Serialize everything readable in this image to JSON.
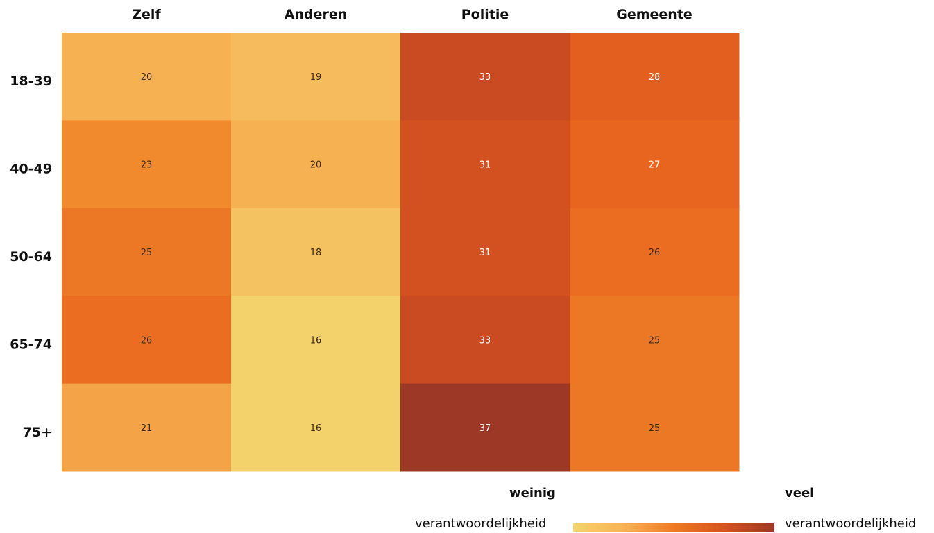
{
  "chart_data": {
    "type": "heatmap",
    "columns": [
      "Zelf",
      "Anderen",
      "Politie",
      "Gemeente"
    ],
    "rows": [
      "18-39",
      "40-49",
      "50-64",
      "65-74",
      "75+"
    ],
    "values": [
      [
        20,
        19,
        33,
        28
      ],
      [
        23,
        20,
        31,
        27
      ],
      [
        25,
        18,
        31,
        26
      ],
      [
        26,
        16,
        33,
        25
      ],
      [
        21,
        16,
        37,
        25
      ]
    ],
    "color_scale": {
      "min": 16,
      "max": 37,
      "stops": [
        "#f3d16b",
        "#f7b75a",
        "#f18a2c",
        "#e9681f",
        "#d8541f",
        "#c84823",
        "#9e3826"
      ]
    },
    "label_color_light": "#ffffff",
    "label_color_dark": "#3a2a1a",
    "legend": {
      "low_title": "weinig",
      "low_subtitle": "verantwoordelijkheid",
      "high_title": "veel",
      "high_subtitle": "verantwoordelijkheid"
    }
  }
}
